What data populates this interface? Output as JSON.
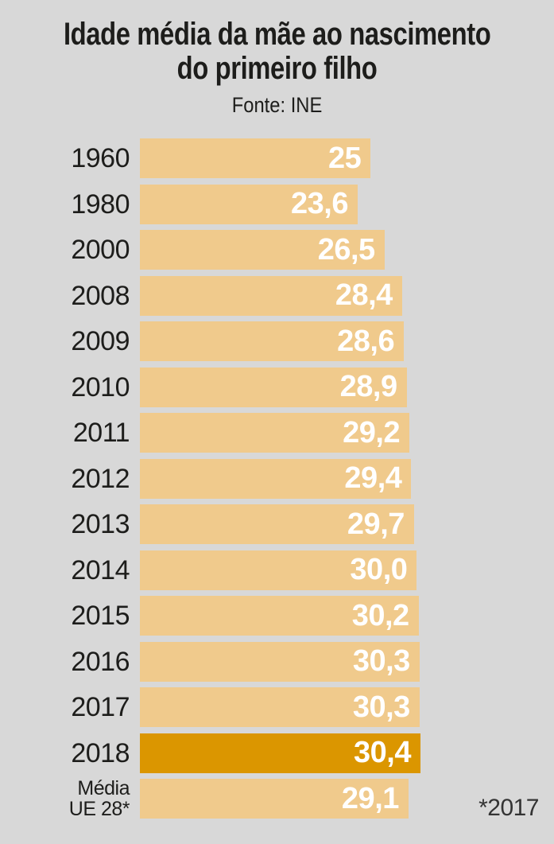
{
  "header": {
    "title_line1": "Idade média da mãe ao nascimento",
    "title_line2": "do primeiro filho",
    "source": "Fonte: INE"
  },
  "annotation": {
    "footnote": "*2017"
  },
  "chart_data": {
    "type": "bar",
    "orientation": "horizontal",
    "title": "Idade média da mãe ao nascimento do primeiro filho",
    "subtitle": "Fonte: INE",
    "categories": [
      "1960",
      "1980",
      "2000",
      "2008",
      "2009",
      "2010",
      "2011",
      "2012",
      "2013",
      "2014",
      "2015",
      "2016",
      "2017",
      "2018",
      "Média\nUE 28*"
    ],
    "values": [
      25,
      23.6,
      26.5,
      28.4,
      28.6,
      28.9,
      29.2,
      29.4,
      29.7,
      30.0,
      30.2,
      30.3,
      30.3,
      30.4,
      29.1
    ],
    "value_labels": [
      "25",
      "23,6",
      "26,5",
      "28,4",
      "28,6",
      "28,9",
      "29,2",
      "29,4",
      "29,7",
      "30,0",
      "30,2",
      "30,3",
      "30,3",
      "30,4",
      "29,1"
    ],
    "highlight_index": 13,
    "footnote": "*2017",
    "xlim": [
      0,
      30.4
    ],
    "grid": false,
    "legend": "none",
    "colors": {
      "bar": "#f0ca8c",
      "bar_highlight": "#db9600",
      "value_text": "#ffffff",
      "label_text": "#1d1d1b",
      "background": "#d8d8d8"
    }
  }
}
